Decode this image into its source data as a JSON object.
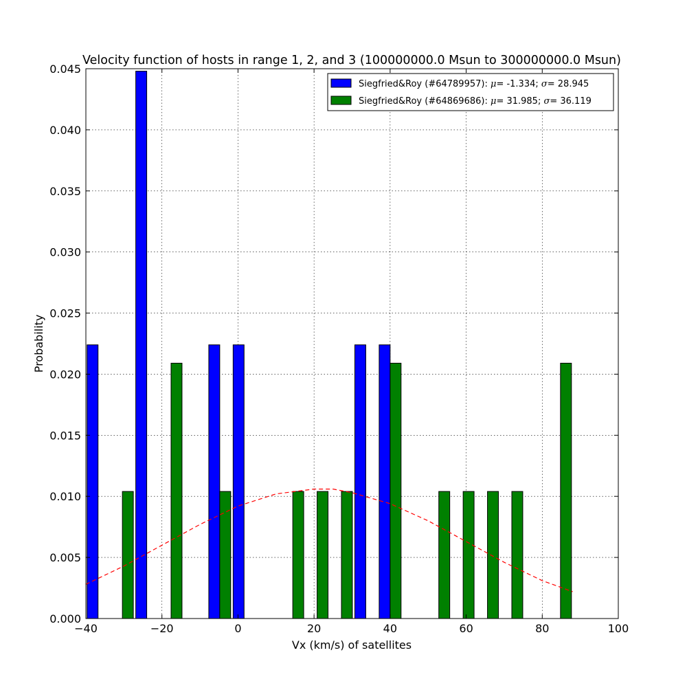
{
  "chart_data": {
    "type": "bar",
    "title": "Velocity function of hosts in range 1, 2, and 3 (100000000.0 Msun to 300000000.0 Msun)",
    "xlabel": "Vx (km/s) of satellites",
    "ylabel": "Probability",
    "xlim": [
      -40,
      100
    ],
    "ylim": [
      0,
      0.045
    ],
    "xticks": [
      -40,
      -20,
      0,
      20,
      40,
      60,
      80,
      100
    ],
    "xtick_labels": [
      "−40",
      "−20",
      "0",
      "20",
      "40",
      "60",
      "80",
      "100"
    ],
    "yticks": [
      0,
      0.005,
      0.01,
      0.015,
      0.02,
      0.025,
      0.03,
      0.035,
      0.04,
      0.045
    ],
    "ytick_labels": [
      "0.000",
      "0.005",
      "0.010",
      "0.015",
      "0.020",
      "0.025",
      "0.030",
      "0.035",
      "0.040",
      "0.045"
    ],
    "grid": true,
    "legend_position": "top-right",
    "bin_edges": [
      -40,
      -33.6,
      -27.2,
      -20.8,
      -14.4,
      -8,
      -1.6,
      4.8,
      11.2,
      17.6,
      24,
      30.4,
      36.8,
      43.2,
      49.6,
      56,
      62.4,
      68.8,
      75.2,
      81.6,
      88,
      94.4,
      100.8
    ],
    "series": [
      {
        "name": "Siegfried&Roy (#64789957): ",
        "mu": "-1.334",
        "sigma": "28.945",
        "color": "#0000ff",
        "bar_offset": 0,
        "values": [
          0.0224,
          0,
          0.0448,
          0,
          0,
          0.0224,
          0.0224,
          0,
          0,
          0,
          0,
          0.0224,
          0.0224,
          0,
          0,
          0,
          0,
          0,
          0,
          0,
          0,
          0
        ]
      },
      {
        "name": "Siegfried&Roy (#64869686): ",
        "mu": "31.985",
        "sigma": "36.119",
        "color": "#008000",
        "bar_offset": 1,
        "values": [
          0,
          0.0104,
          0,
          0.0209,
          0,
          0.0104,
          0,
          0,
          0.0104,
          0.0104,
          0.0104,
          0,
          0.0209,
          0,
          0.0104,
          0.0104,
          0.0104,
          0.0104,
          0,
          0.0209,
          0,
          0
        ]
      }
    ],
    "fit_curve": {
      "color": "#ff0000",
      "style": "dashed",
      "x": [
        -40,
        -30,
        -20,
        -10,
        0,
        10,
        20,
        25,
        30,
        40,
        50,
        60,
        70,
        80,
        88
      ],
      "y": [
        0.0028,
        0.0043,
        0.006,
        0.0077,
        0.0092,
        0.0102,
        0.0106,
        0.0106,
        0.0103,
        0.0094,
        0.008,
        0.0063,
        0.0046,
        0.0031,
        0.0022
      ]
    }
  }
}
